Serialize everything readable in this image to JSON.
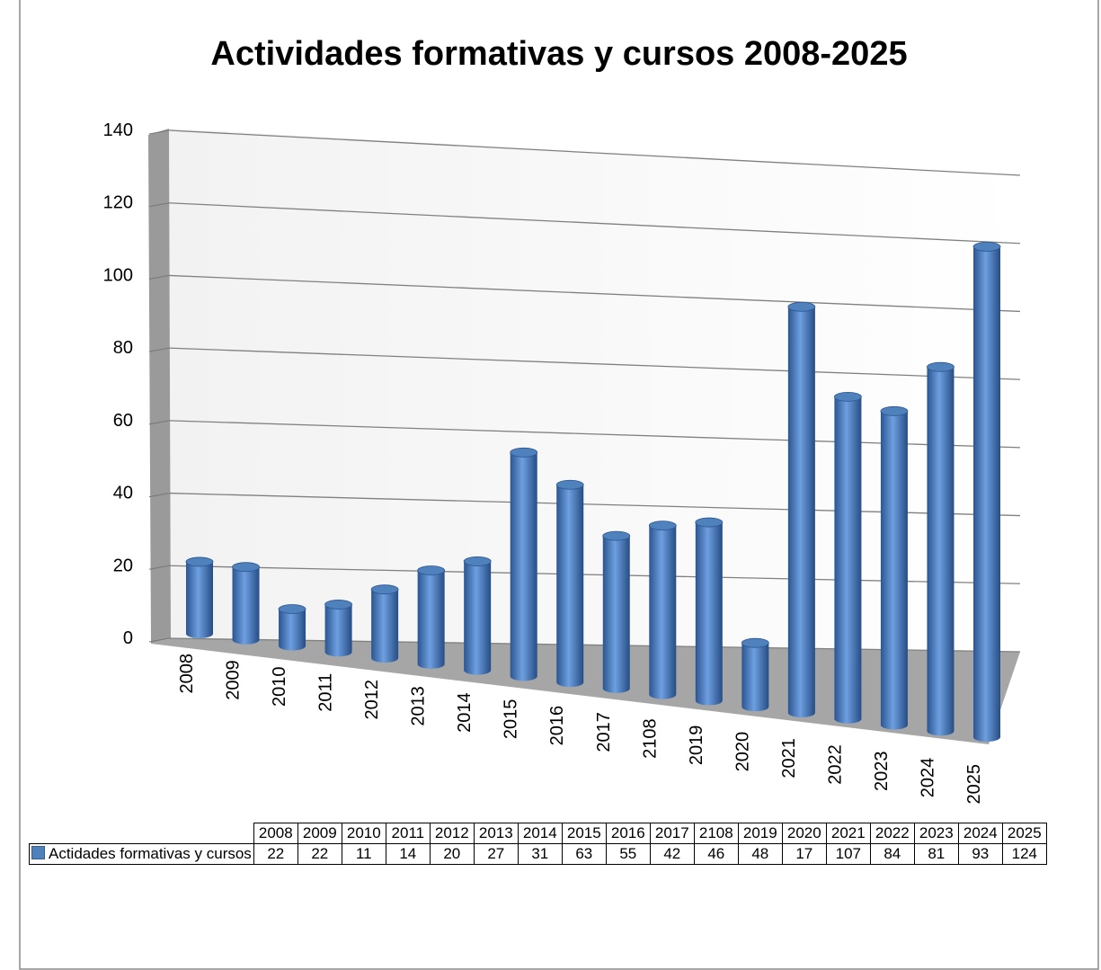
{
  "chart_data": {
    "type": "bar3d",
    "title": "Actividades formativas y cursos 2008-2025",
    "categories": [
      "2008",
      "2009",
      "2010",
      "2011",
      "2012",
      "2013",
      "2014",
      "2015",
      "2016",
      "2017",
      "2108",
      "2019",
      "2020",
      "2021",
      "2022",
      "2023",
      "2024",
      "2025"
    ],
    "series": [
      {
        "name": "Actidades formativas y cursos",
        "color": "#4f81bd",
        "values": [
          22,
          22,
          11,
          14,
          20,
          27,
          31,
          63,
          55,
          42,
          46,
          48,
          17,
          107,
          84,
          81,
          93,
          124
        ]
      }
    ],
    "ylim": [
      0,
      140
    ],
    "yticks": [
      0,
      20,
      40,
      60,
      80,
      100,
      120,
      140
    ],
    "grid": true,
    "data_table": true
  }
}
